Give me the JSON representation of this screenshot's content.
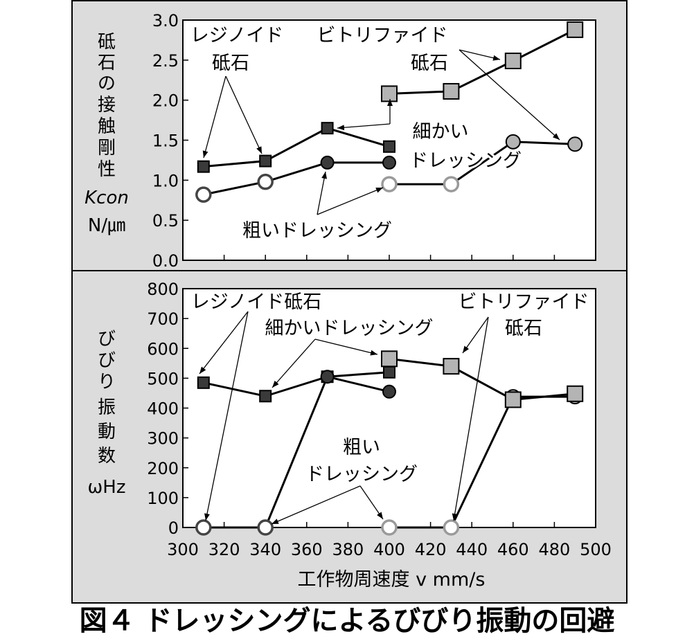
{
  "caption": "図４ ドレッシングによるびびり振動の回避",
  "chart_data": [
    {
      "type": "line",
      "ylabel_lines": [
        "砥",
        "石",
        "の",
        "接",
        "触",
        "剛",
        "性",
        "Kcon",
        "N/㎛"
      ],
      "ylim": [
        0,
        3.0
      ],
      "yticks": [
        "0.0",
        "0.5",
        "1.0",
        "1.5",
        "2.0",
        "2.5",
        "3.0"
      ],
      "xlim": [
        300,
        500
      ],
      "series": [
        {
          "marker": "square",
          "fill": "#3a3a3a",
          "x": [
            310,
            340,
            370,
            400
          ],
          "y": [
            1.17,
            1.24,
            1.65,
            1.42
          ]
        },
        {
          "marker": "circle",
          "fill": "#3a3a3a",
          "x": [
            370,
            400
          ],
          "y": [
            1.22,
            1.22
          ]
        },
        {
          "marker": "circle",
          "fill": "#ffffff",
          "stroke": "#444444",
          "x": [
            310,
            340
          ],
          "y": [
            0.82,
            0.98
          ]
        },
        {
          "marker": "circle",
          "fill": "#ffffff",
          "stroke": "#9a9a9a",
          "x": [
            400,
            430
          ],
          "y": [
            0.95,
            0.95
          ]
        },
        {
          "marker": "square",
          "fill": "#b4b4b4",
          "x": [
            400,
            430,
            460,
            490
          ],
          "y": [
            2.08,
            2.11,
            2.49,
            2.88
          ]
        },
        {
          "marker": "circle",
          "fill": "#b4b4b4",
          "x": [
            460,
            490
          ],
          "y": [
            1.48,
            1.45
          ]
        }
      ],
      "connectors": [
        {
          "x": [
            340,
            370
          ],
          "y": [
            0.98,
            1.22
          ],
          "color": "#000000"
        },
        {
          "x": [
            430,
            460
          ],
          "y": [
            0.95,
            1.48
          ],
          "color": "#000000"
        }
      ],
      "annotations": {
        "resinoid": [
          "レジノイド",
          "砥石"
        ],
        "vitrified": [
          "ビトリファイド",
          "砥石"
        ],
        "fine": [
          "細かい",
          "ドレッシング"
        ],
        "coarse": [
          "粗いドレッシング"
        ]
      }
    },
    {
      "type": "line",
      "ylabel_lines": [
        "び",
        "び",
        "り",
        "振",
        "動",
        "数",
        "ωHz"
      ],
      "ylim": [
        0,
        800
      ],
      "yticks": [
        "0",
        "100",
        "200",
        "300",
        "400",
        "500",
        "600",
        "700",
        "800"
      ],
      "xlim": [
        300,
        500
      ],
      "xticks": [
        "300",
        "320",
        "340",
        "360",
        "380",
        "400",
        "420",
        "440",
        "460",
        "480",
        "500"
      ],
      "xlabel": "工作物周速度 v mm/s",
      "series": [
        {
          "marker": "square",
          "fill": "#3a3a3a",
          "x": [
            310,
            340,
            370,
            400
          ],
          "y": [
            485,
            440,
            505,
            520
          ]
        },
        {
          "marker": "circle",
          "fill": "#3a3a3a",
          "x": [
            370,
            400
          ],
          "y": [
            505,
            455
          ]
        },
        {
          "marker": "circle",
          "fill": "#ffffff",
          "stroke": "#444444",
          "x": [
            310,
            340
          ],
          "y": [
            0,
            0
          ]
        },
        {
          "marker": "circle",
          "fill": "#ffffff",
          "stroke": "#9a9a9a",
          "x": [
            400,
            430
          ],
          "y": [
            0,
            0
          ]
        },
        {
          "marker": "circle",
          "fill": "#b4b4b4",
          "x": [
            460,
            490
          ],
          "y": [
            438,
            438
          ]
        },
        {
          "marker": "square",
          "fill": "#b4b4b4",
          "x": [
            400,
            430,
            460,
            490
          ],
          "y": [
            565,
            540,
            428,
            448
          ]
        }
      ],
      "connectors": [
        {
          "x": [
            340,
            370
          ],
          "y": [
            0,
            505
          ],
          "color": "#000000"
        },
        {
          "x": [
            430,
            460
          ],
          "y": [
            0,
            438
          ],
          "color": "#000000"
        }
      ],
      "annotations": {
        "resinoid": [
          "レジノイド砥石"
        ],
        "fine": [
          "細かいドレッシング"
        ],
        "vitrified": [
          "ビトリファイド",
          "砥石"
        ],
        "coarse": [
          "粗い",
          "ドレッシング"
        ]
      }
    }
  ]
}
